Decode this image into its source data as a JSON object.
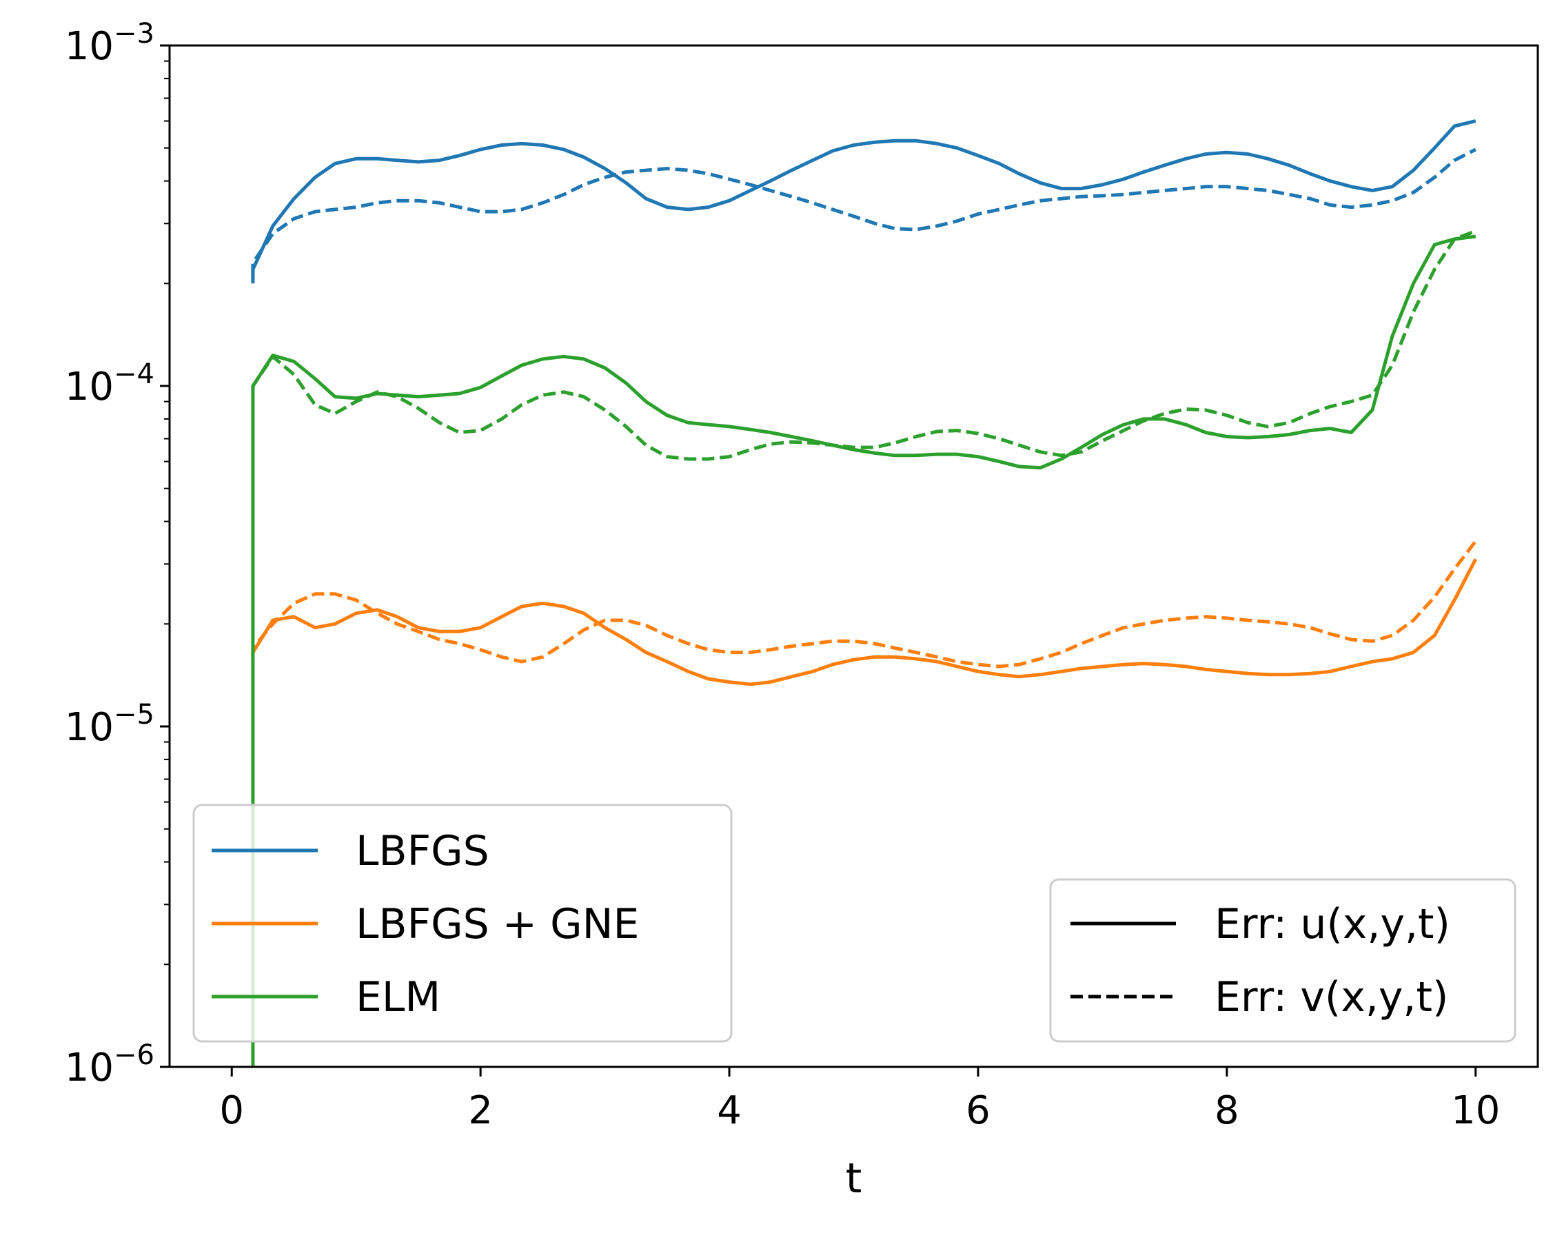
{
  "chart_data": {
    "type": "line",
    "title": "",
    "xlabel": "t",
    "ylabel": "",
    "xlim": [
      -0.5,
      10.5
    ],
    "ylim": [
      1e-06,
      0.001
    ],
    "yscale": "log",
    "grid": false,
    "x_ticks": [
      0,
      2,
      4,
      6,
      8,
      10
    ],
    "x_tick_labels": [
      "0",
      "2",
      "4",
      "6",
      "8",
      "10"
    ],
    "y_ticks": [
      {
        "base": "10",
        "exp": "−3",
        "value": 0.001
      },
      {
        "base": "10",
        "exp": "−4",
        "value": 0.0001
      },
      {
        "base": "10",
        "exp": "−5",
        "value": 1e-05
      },
      {
        "base": "10",
        "exp": "−6",
        "value": 1e-06
      }
    ],
    "colors": {
      "LBFGS": "#1f77b4",
      "LBFGS + GNE": "#ff7f0e",
      "ELM": "#2ca02c"
    },
    "legend_methods": {
      "position": "lower-left",
      "entries": [
        {
          "label": "LBFGS",
          "color": "#1f77b4"
        },
        {
          "label": "LBFGS + GNE",
          "color": "#ff7f0e"
        },
        {
          "label": "ELM",
          "color": "#2ca02c"
        }
      ]
    },
    "legend_components": {
      "position": "lower-right",
      "entries": [
        {
          "label": "Err: u(x,y,t)",
          "style": "solid"
        },
        {
          "label": "Err: v(x,y,t)",
          "style": "dashed"
        }
      ]
    },
    "series": [
      {
        "method": "LBFGS",
        "component": "u",
        "style": "solid",
        "color": "#1f77b4",
        "x": [
          0.17,
          0.17,
          0.33,
          0.5,
          0.67,
          0.83,
          1.0,
          1.17,
          1.33,
          1.5,
          1.67,
          1.83,
          2.0,
          2.17,
          2.33,
          2.5,
          2.67,
          2.83,
          3.0,
          3.17,
          3.33,
          3.5,
          3.67,
          3.83,
          4.0,
          4.17,
          4.33,
          4.5,
          4.67,
          4.83,
          5.0,
          5.17,
          5.33,
          5.5,
          5.67,
          5.83,
          6.0,
          6.17,
          6.33,
          6.5,
          6.67,
          6.83,
          7.0,
          7.17,
          7.33,
          7.5,
          7.67,
          7.83,
          8.0,
          8.17,
          8.33,
          8.5,
          8.67,
          8.83,
          9.0,
          9.17,
          9.33,
          9.5,
          9.67,
          9.83,
          10.0
        ],
        "y": [
          0.0002,
          0.00022,
          0.000295,
          0.000355,
          0.00041,
          0.00045,
          0.000465,
          0.000465,
          0.00046,
          0.000455,
          0.00046,
          0.000475,
          0.000495,
          0.00051,
          0.000515,
          0.00051,
          0.000495,
          0.00047,
          0.000435,
          0.000395,
          0.000355,
          0.000335,
          0.00033,
          0.000335,
          0.00035,
          0.000375,
          0.0004,
          0.00043,
          0.00046,
          0.00049,
          0.00051,
          0.00052,
          0.000525,
          0.000525,
          0.000515,
          0.0005,
          0.000475,
          0.00045,
          0.00042,
          0.000395,
          0.00038,
          0.00038,
          0.00039,
          0.000405,
          0.000425,
          0.000445,
          0.000465,
          0.00048,
          0.000485,
          0.00048,
          0.000465,
          0.000445,
          0.00042,
          0.0004,
          0.000385,
          0.000375,
          0.000385,
          0.00043,
          0.0005,
          0.00058,
          0.0006
        ]
      },
      {
        "method": "LBFGS",
        "component": "v",
        "style": "dashed",
        "color": "#1f77b4",
        "x": [
          0.17,
          0.17,
          0.33,
          0.5,
          0.67,
          0.83,
          1.0,
          1.17,
          1.33,
          1.5,
          1.67,
          1.83,
          2.0,
          2.17,
          2.33,
          2.5,
          2.67,
          2.83,
          3.0,
          3.17,
          3.33,
          3.5,
          3.67,
          3.83,
          4.0,
          4.17,
          4.33,
          4.5,
          4.67,
          4.83,
          5.0,
          5.17,
          5.33,
          5.5,
          5.67,
          5.83,
          6.0,
          6.17,
          6.33,
          6.5,
          6.67,
          6.83,
          7.0,
          7.17,
          7.33,
          7.5,
          7.67,
          7.83,
          8.0,
          8.17,
          8.33,
          8.5,
          8.67,
          8.83,
          9.0,
          9.17,
          9.33,
          9.5,
          9.67,
          9.83,
          10.0
        ],
        "y": [
          0.00021,
          0.00023,
          0.00028,
          0.00031,
          0.000325,
          0.00033,
          0.000335,
          0.000345,
          0.00035,
          0.00035,
          0.000345,
          0.000335,
          0.000325,
          0.000325,
          0.00033,
          0.000345,
          0.000365,
          0.00039,
          0.00041,
          0.000425,
          0.00043,
          0.000435,
          0.00043,
          0.00042,
          0.000405,
          0.00039,
          0.000375,
          0.00036,
          0.000345,
          0.00033,
          0.000315,
          0.0003,
          0.00029,
          0.000288,
          0.000295,
          0.000305,
          0.00032,
          0.00033,
          0.00034,
          0.00035,
          0.000355,
          0.00036,
          0.000362,
          0.000365,
          0.00037,
          0.000375,
          0.00038,
          0.000385,
          0.000385,
          0.00038,
          0.000375,
          0.000365,
          0.000355,
          0.00034,
          0.000335,
          0.00034,
          0.00035,
          0.00037,
          0.00041,
          0.00046,
          0.000495
        ]
      },
      {
        "method": "LBFGS + GNE",
        "component": "u",
        "style": "solid",
        "color": "#ff7f0e",
        "x": [
          0.17,
          0.17,
          0.33,
          0.5,
          0.67,
          0.83,
          1.0,
          1.17,
          1.33,
          1.5,
          1.67,
          1.83,
          2.0,
          2.17,
          2.33,
          2.5,
          2.67,
          2.83,
          3.0,
          3.17,
          3.33,
          3.5,
          3.67,
          3.83,
          4.0,
          4.17,
          4.33,
          4.5,
          4.67,
          4.83,
          5.0,
          5.17,
          5.33,
          5.5,
          5.67,
          5.83,
          6.0,
          6.17,
          6.33,
          6.5,
          6.67,
          6.83,
          7.0,
          7.17,
          7.33,
          7.5,
          7.67,
          7.83,
          8.0,
          8.17,
          8.33,
          8.5,
          8.67,
          8.83,
          9.0,
          9.17,
          9.33,
          9.5,
          9.67,
          9.83,
          10.0
        ],
        "y": [
          1.6e-05,
          1.65e-05,
          2.05e-05,
          2.1e-05,
          1.95e-05,
          2e-05,
          2.15e-05,
          2.2e-05,
          2.1e-05,
          1.95e-05,
          1.9e-05,
          1.9e-05,
          1.95e-05,
          2.1e-05,
          2.25e-05,
          2.3e-05,
          2.25e-05,
          2.15e-05,
          1.95e-05,
          1.8e-05,
          1.65e-05,
          1.55e-05,
          1.45e-05,
          1.38e-05,
          1.35e-05,
          1.33e-05,
          1.35e-05,
          1.4e-05,
          1.45e-05,
          1.52e-05,
          1.57e-05,
          1.6e-05,
          1.6e-05,
          1.58e-05,
          1.55e-05,
          1.5e-05,
          1.45e-05,
          1.42e-05,
          1.4e-05,
          1.42e-05,
          1.45e-05,
          1.48e-05,
          1.5e-05,
          1.52e-05,
          1.53e-05,
          1.52e-05,
          1.5e-05,
          1.47e-05,
          1.45e-05,
          1.43e-05,
          1.42e-05,
          1.42e-05,
          1.43e-05,
          1.45e-05,
          1.5e-05,
          1.55e-05,
          1.58e-05,
          1.65e-05,
          1.85e-05,
          2.35e-05,
          3.1e-05
        ]
      },
      {
        "method": "LBFGS + GNE",
        "component": "v",
        "style": "dashed",
        "color": "#ff7f0e",
        "x": [
          0.17,
          0.17,
          0.33,
          0.5,
          0.67,
          0.83,
          1.0,
          1.17,
          1.33,
          1.5,
          1.67,
          1.83,
          2.0,
          2.17,
          2.33,
          2.5,
          2.67,
          2.83,
          3.0,
          3.17,
          3.33,
          3.5,
          3.67,
          3.83,
          4.0,
          4.17,
          4.33,
          4.5,
          4.67,
          4.83,
          5.0,
          5.17,
          5.33,
          5.5,
          5.67,
          5.83,
          6.0,
          6.17,
          6.33,
          6.5,
          6.67,
          6.83,
          7.0,
          7.17,
          7.33,
          7.5,
          7.67,
          7.83,
          8.0,
          8.17,
          8.33,
          8.5,
          8.67,
          8.83,
          9.0,
          9.17,
          9.33,
          9.5,
          9.67,
          9.83,
          10.0
        ],
        "y": [
          1.6e-05,
          1.7e-05,
          2e-05,
          2.3e-05,
          2.45e-05,
          2.45e-05,
          2.35e-05,
          2.15e-05,
          2e-05,
          1.9e-05,
          1.8e-05,
          1.75e-05,
          1.68e-05,
          1.6e-05,
          1.55e-05,
          1.6e-05,
          1.75e-05,
          1.92e-05,
          2.05e-05,
          2.05e-05,
          1.98e-05,
          1.85e-05,
          1.75e-05,
          1.68e-05,
          1.65e-05,
          1.65e-05,
          1.68e-05,
          1.72e-05,
          1.75e-05,
          1.78e-05,
          1.78e-05,
          1.75e-05,
          1.7e-05,
          1.65e-05,
          1.6e-05,
          1.55e-05,
          1.52e-05,
          1.5e-05,
          1.52e-05,
          1.58e-05,
          1.65e-05,
          1.75e-05,
          1.85e-05,
          1.95e-05,
          2e-05,
          2.05e-05,
          2.08e-05,
          2.1e-05,
          2.08e-05,
          2.05e-05,
          2.03e-05,
          2e-05,
          1.95e-05,
          1.87e-05,
          1.8e-05,
          1.78e-05,
          1.85e-05,
          2.05e-05,
          2.4e-05,
          2.9e-05,
          3.5e-05
        ]
      },
      {
        "method": "ELM",
        "component": "u",
        "style": "solid",
        "color": "#2ca02c",
        "x": [
          0.17,
          0.17,
          0.17,
          0.33,
          0.5,
          0.67,
          0.83,
          1.0,
          1.17,
          1.33,
          1.5,
          1.67,
          1.83,
          2.0,
          2.17,
          2.33,
          2.5,
          2.67,
          2.83,
          3.0,
          3.17,
          3.33,
          3.5,
          3.67,
          3.83,
          4.0,
          4.17,
          4.33,
          4.5,
          4.67,
          4.83,
          5.0,
          5.17,
          5.33,
          5.5,
          5.67,
          5.83,
          6.0,
          6.17,
          6.33,
          6.5,
          6.67,
          6.83,
          7.0,
          7.17,
          7.33,
          7.5,
          7.67,
          7.83,
          8.0,
          8.17,
          8.33,
          8.5,
          8.67,
          8.83,
          9.0,
          9.17,
          9.33,
          9.5,
          9.67,
          9.83,
          10.0
        ],
        "y": [
          1e-06,
          9.5e-05,
          0.0001,
          0.000123,
          0.000118,
          0.000105,
          9.3e-05,
          9.2e-05,
          9.5e-05,
          9.4e-05,
          9.3e-05,
          9.4e-05,
          9.5e-05,
          9.9e-05,
          0.000107,
          0.000115,
          0.00012,
          0.000122,
          0.00012,
          0.000113,
          0.000102,
          9e-05,
          8.2e-05,
          7.8e-05,
          7.7e-05,
          7.6e-05,
          7.45e-05,
          7.3e-05,
          7.1e-05,
          6.9e-05,
          6.7e-05,
          6.5e-05,
          6.35e-05,
          6.25e-05,
          6.25e-05,
          6.3e-05,
          6.3e-05,
          6.2e-05,
          6e-05,
          5.8e-05,
          5.75e-05,
          6.1e-05,
          6.6e-05,
          7.2e-05,
          7.7e-05,
          8e-05,
          8e-05,
          7.7e-05,
          7.3e-05,
          7.1e-05,
          7.05e-05,
          7.1e-05,
          7.2e-05,
          7.4e-05,
          7.5e-05,
          7.3e-05,
          8.5e-05,
          0.00014,
          0.0002,
          0.00026,
          0.00027,
          0.000275
        ]
      },
      {
        "method": "ELM",
        "component": "v",
        "style": "dashed",
        "color": "#2ca02c",
        "x": [
          0.17,
          0.17,
          0.33,
          0.5,
          0.67,
          0.83,
          1.0,
          1.17,
          1.33,
          1.5,
          1.67,
          1.83,
          2.0,
          2.17,
          2.33,
          2.5,
          2.67,
          2.83,
          3.0,
          3.17,
          3.33,
          3.5,
          3.67,
          3.83,
          4.0,
          4.17,
          4.33,
          4.5,
          4.67,
          4.83,
          5.0,
          5.17,
          5.33,
          5.5,
          5.67,
          5.83,
          6.0,
          6.17,
          6.33,
          6.5,
          6.67,
          6.83,
          7.0,
          7.17,
          7.33,
          7.5,
          7.67,
          7.83,
          8.0,
          8.17,
          8.33,
          8.5,
          8.67,
          8.83,
          9.0,
          9.17,
          9.33,
          9.5,
          9.67,
          9.83,
          10.0
        ],
        "y": [
          9.8e-05,
          0.0001,
          0.000122,
          0.000108,
          8.8e-05,
          8.3e-05,
          9e-05,
          9.6e-05,
          9.3e-05,
          8.6e-05,
          7.8e-05,
          7.3e-05,
          7.4e-05,
          8e-05,
          8.8e-05,
          9.4e-05,
          9.6e-05,
          9.3e-05,
          8.5e-05,
          7.6e-05,
          6.7e-05,
          6.2e-05,
          6.1e-05,
          6.1e-05,
          6.2e-05,
          6.5e-05,
          6.75e-05,
          6.85e-05,
          6.8e-05,
          6.7e-05,
          6.6e-05,
          6.6e-05,
          6.8e-05,
          7.1e-05,
          7.35e-05,
          7.4e-05,
          7.25e-05,
          7e-05,
          6.7e-05,
          6.4e-05,
          6.25e-05,
          6.4e-05,
          6.9e-05,
          7.4e-05,
          7.9e-05,
          8.3e-05,
          8.55e-05,
          8.5e-05,
          8.2e-05,
          7.8e-05,
          7.6e-05,
          7.8e-05,
          8.3e-05,
          8.7e-05,
          9e-05,
          9.4e-05,
          0.000115,
          0.000165,
          0.00022,
          0.00027,
          0.000285
        ]
      }
    ]
  }
}
